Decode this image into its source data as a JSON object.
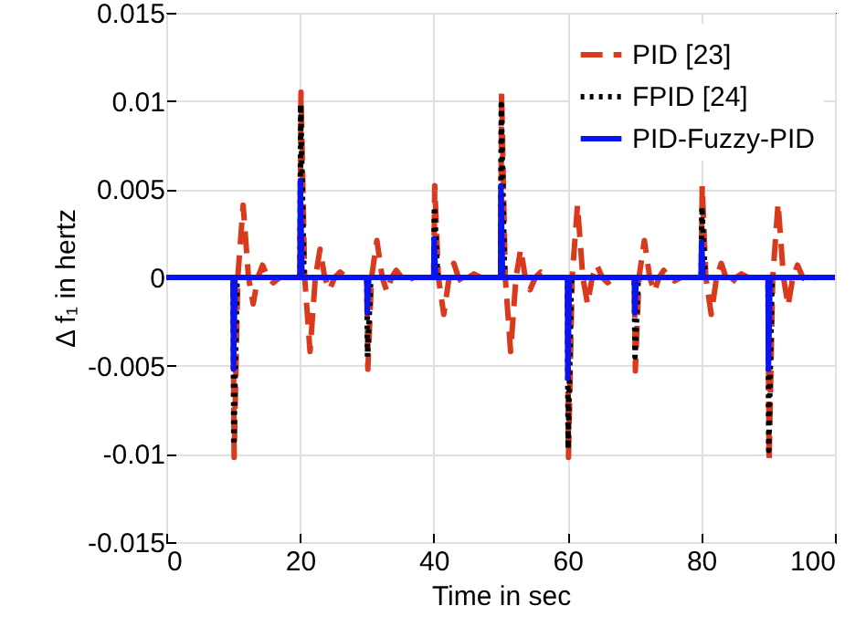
{
  "chart_data": {
    "type": "line",
    "xlabel": "Time in sec",
    "ylabel": "Δ f₁ in hertz",
    "xlim": [
      0,
      100
    ],
    "ylim": [
      -0.015,
      0.015
    ],
    "xticks": [
      0,
      20,
      40,
      60,
      80,
      100
    ],
    "yticks": [
      -0.015,
      -0.01,
      -0.005,
      0,
      0.005,
      0.01,
      0.015
    ],
    "grid": true,
    "legend": "top right",
    "series": [
      {
        "name": "PID [23]",
        "color": "#d93a1e",
        "line_style": "dashed",
        "x": [
          0,
          10,
          10.15,
          10.7,
          11.5,
          12.3,
          13,
          13.7,
          14.4,
          15.2,
          16,
          17,
          20,
          20.15,
          20.7,
          21.5,
          22.3,
          23,
          23.7,
          24.4,
          25.2,
          26,
          27,
          30,
          30.15,
          30.7,
          31.5,
          32.3,
          33,
          33.7,
          34.4,
          35.2,
          36,
          37,
          40,
          40.15,
          40.7,
          41.5,
          42.3,
          43,
          43.7,
          44.4,
          45.2,
          46,
          47,
          50,
          50.15,
          50.7,
          51.5,
          52.3,
          53,
          53.7,
          54.4,
          55.2,
          56,
          57,
          60,
          60.15,
          60.7,
          61.5,
          62.3,
          63,
          63.7,
          64.4,
          65.2,
          66,
          67,
          70,
          70.15,
          70.7,
          71.5,
          72.3,
          73,
          73.7,
          74.4,
          75.2,
          76,
          77,
          80,
          80.15,
          80.7,
          81.5,
          82.3,
          83,
          83.7,
          84.4,
          85.2,
          86,
          87,
          90,
          90.15,
          90.7,
          91.5,
          92.3,
          93,
          93.7,
          94.4,
          95.2,
          96,
          97,
          100
        ],
        "values": [
          0,
          0,
          -0.0102,
          0,
          0.0041,
          0,
          -0.0015,
          0,
          0.0007,
          0,
          -0.0003,
          0,
          0,
          0.0105,
          0,
          -0.0042,
          0,
          0.0016,
          0,
          -0.0007,
          0,
          0.0003,
          0,
          0,
          -0.0052,
          0,
          0.0021,
          0,
          -0.0008,
          0,
          0.0004,
          0,
          -0.0002,
          0,
          0,
          0.0052,
          0,
          -0.0021,
          0,
          0.0008,
          0,
          -0.0004,
          0,
          0.0002,
          0,
          0,
          0.0105,
          0,
          -0.0042,
          0,
          0.0016,
          0,
          -0.0007,
          0,
          0.0003,
          0,
          0,
          -0.0102,
          0,
          0.0041,
          0,
          -0.0015,
          0,
          0.0007,
          0,
          -0.0003,
          0,
          0,
          -0.0053,
          0,
          0.0021,
          0,
          -0.0008,
          0,
          0.0004,
          0,
          -0.0002,
          0,
          0,
          0.0052,
          0,
          -0.0021,
          0,
          0.0008,
          0,
          -0.0004,
          0,
          0.0002,
          0,
          0,
          -0.0105,
          0,
          0.0042,
          0,
          -0.0016,
          0,
          0.0007,
          0,
          -0.0003,
          0,
          0
        ]
      },
      {
        "name": "FPID [24]",
        "color": "#000000",
        "line_style": "dotted",
        "x": [
          0,
          10,
          10.1,
          10.6,
          20,
          20.1,
          20.6,
          30,
          30.1,
          30.6,
          40,
          40.1,
          40.6,
          50,
          50.1,
          50.6,
          60,
          60.1,
          60.6,
          70,
          70.1,
          70.6,
          80,
          80.1,
          80.6,
          90,
          90.1,
          90.6,
          100
        ],
        "values": [
          0,
          0,
          -0.0095,
          0,
          0,
          0.0098,
          0,
          0,
          -0.0045,
          0,
          0,
          0.004,
          0,
          0,
          0.0098,
          0,
          0,
          -0.0097,
          0,
          0,
          -0.0045,
          0,
          0,
          0.004,
          0,
          0,
          -0.0098,
          0,
          0
        ]
      },
      {
        "name": "PID-Fuzzy-PID",
        "color": "#0a14f0",
        "line_style": "solid",
        "x": [
          0,
          10,
          10.05,
          10.3,
          20,
          20.05,
          20.3,
          30,
          30.05,
          30.3,
          40,
          40.05,
          40.3,
          50,
          50.05,
          50.3,
          60,
          60.05,
          60.3,
          70,
          70.05,
          70.3,
          80,
          80.05,
          80.3,
          90,
          90.05,
          90.3,
          100
        ],
        "values": [
          0,
          0,
          -0.0052,
          0,
          0,
          0.0055,
          0,
          0,
          -0.002,
          0,
          0,
          0.0022,
          0,
          0,
          0.0052,
          0,
          0,
          -0.0057,
          0,
          0,
          -0.002,
          0,
          0,
          0.002,
          0,
          0,
          -0.0052,
          0,
          0
        ]
      }
    ]
  }
}
